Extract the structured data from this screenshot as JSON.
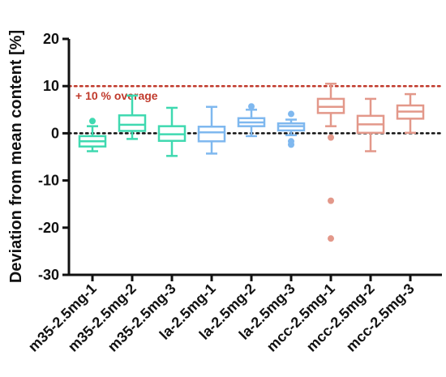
{
  "chart_data": {
    "type": "box",
    "title": "",
    "xlabel": "",
    "ylabel": "Deviation from mean content [%]",
    "ylim": [
      -30,
      20
    ],
    "yticks": [
      -30,
      -20,
      -10,
      0,
      10,
      20
    ],
    "categories": [
      "m35-2.5mg-1",
      "m35-2.5mg-2",
      "m35-2.5mg-3",
      "la-2.5mg-1",
      "la-2.5mg-2",
      "la-2.5mg-3",
      "mcc-2.5mg-1",
      "mcc-2.5mg-2",
      "mcc-2.5mg-3"
    ],
    "colors": [
      "#3fd9b0",
      "#3fd9b0",
      "#3fd9b0",
      "#7fb8ef",
      "#7fb8ef",
      "#7fb8ef",
      "#e3988a",
      "#e3988a",
      "#e3988a"
    ],
    "boxes": [
      {
        "min": -3.8,
        "q1": -2.8,
        "median": -1.7,
        "q3": -0.6,
        "max": 1.5,
        "outliers": [
          2.6
        ]
      },
      {
        "min": -1.2,
        "q1": 0.5,
        "median": 1.8,
        "q3": 3.8,
        "max": 8.0,
        "outliers": []
      },
      {
        "min": -4.8,
        "q1": -1.6,
        "median": -0.2,
        "q3": 1.5,
        "max": 5.4,
        "outliers": []
      },
      {
        "min": -4.3,
        "q1": -1.7,
        "median": 0.2,
        "q3": 1.4,
        "max": 5.6,
        "outliers": []
      },
      {
        "min": -0.6,
        "q1": 1.5,
        "median": 2.3,
        "q3": 3.2,
        "max": 5.0,
        "outliers": [
          5.7
        ]
      },
      {
        "min": -0.4,
        "q1": 0.6,
        "median": 1.5,
        "q3": 2.1,
        "max": 2.9,
        "outliers": [
          4.1,
          -1.7,
          -2.4
        ]
      },
      {
        "min": 1.5,
        "q1": 4.3,
        "median": 5.6,
        "q3": 7.3,
        "max": 10.5,
        "outliers": [
          -0.9,
          -14.3,
          -22.3
        ]
      },
      {
        "min": -3.8,
        "q1": 0.1,
        "median": 1.9,
        "q3": 3.7,
        "max": 7.3,
        "outliers": []
      },
      {
        "min": 0.1,
        "q1": 3.1,
        "median": 4.6,
        "q3": 5.9,
        "max": 8.3,
        "outliers": []
      }
    ],
    "reference_lines": [
      {
        "value": 10,
        "label": "+ 10 % overage",
        "color": "#c0392b",
        "style": "dotted"
      },
      {
        "value": 0,
        "label": "",
        "color": "#111111",
        "style": "dotted"
      }
    ],
    "grid": false,
    "legend": "none"
  }
}
